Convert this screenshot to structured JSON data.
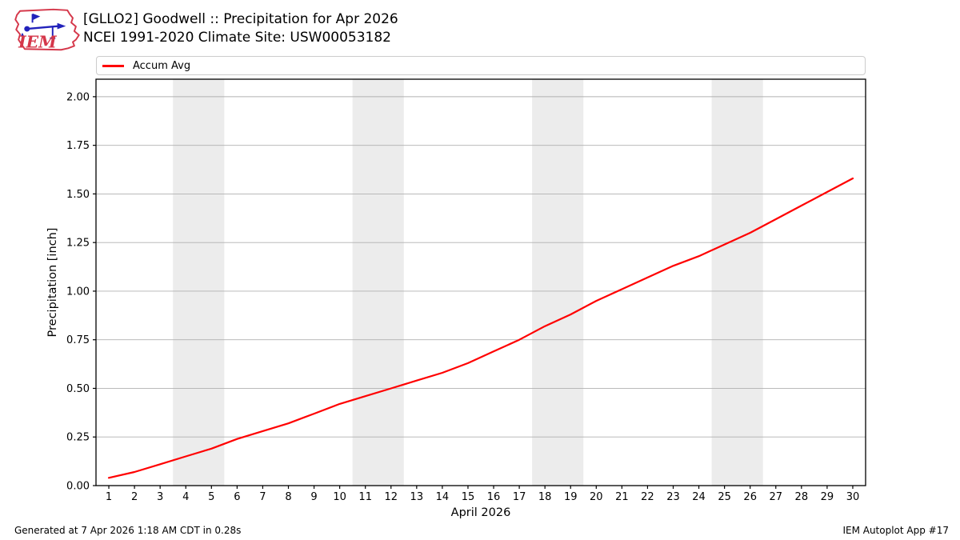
{
  "header": {
    "title_line1": "[GLLO2] Goodwell :: Precipitation for Apr 2026",
    "title_line2": "NCEI 1991-2020 Climate Site: USW00053182",
    "logo_text": "IEM"
  },
  "legend": {
    "label": "Accum Avg",
    "color": "#ff0000"
  },
  "footer": {
    "left": "Generated at 7 Apr 2026 1:18 AM CDT in 0.28s",
    "right": "IEM Autoplot App #17"
  },
  "colors": {
    "line": "#ff0000",
    "grid": "#b0b0b0",
    "band": "#ececec",
    "frame": "#000000",
    "logo_red": "#d5374a",
    "logo_blue": "#2222bb"
  },
  "chart_data": {
    "type": "line",
    "title": "[GLLO2] Goodwell :: Precipitation for Apr 2026",
    "subtitle": "NCEI 1991-2020 Climate Site: USW00053182",
    "xlabel": "April 2026",
    "ylabel": "Precipitation [inch]",
    "xlim": [
      0.5,
      30.5
    ],
    "ylim": [
      0,
      2.09
    ],
    "grid": "horizontal",
    "legend_position": "top",
    "y_ticks": [
      0.0,
      0.25,
      0.5,
      0.75,
      1.0,
      1.25,
      1.5,
      1.75,
      2.0
    ],
    "x_ticks": [
      1,
      2,
      3,
      4,
      5,
      6,
      7,
      8,
      9,
      10,
      11,
      12,
      13,
      14,
      15,
      16,
      17,
      18,
      19,
      20,
      21,
      22,
      23,
      24,
      25,
      26,
      27,
      28,
      29,
      30
    ],
    "weekend_bands": [
      [
        3.5,
        5.5
      ],
      [
        10.5,
        12.5
      ],
      [
        17.5,
        19.5
      ],
      [
        24.5,
        26.5
      ]
    ],
    "series": [
      {
        "name": "Accum Avg",
        "color": "#ff0000",
        "x": [
          1,
          2,
          3,
          4,
          5,
          6,
          7,
          8,
          9,
          10,
          11,
          12,
          13,
          14,
          15,
          16,
          17,
          18,
          19,
          20,
          21,
          22,
          23,
          24,
          25,
          26,
          27,
          28,
          29,
          30
        ],
        "values": [
          0.04,
          0.07,
          0.11,
          0.15,
          0.19,
          0.24,
          0.28,
          0.32,
          0.37,
          0.42,
          0.46,
          0.5,
          0.54,
          0.58,
          0.63,
          0.69,
          0.75,
          0.82,
          0.88,
          0.95,
          1.01,
          1.07,
          1.13,
          1.18,
          1.24,
          1.3,
          1.37,
          1.44,
          1.51,
          1.58
        ]
      }
    ]
  }
}
